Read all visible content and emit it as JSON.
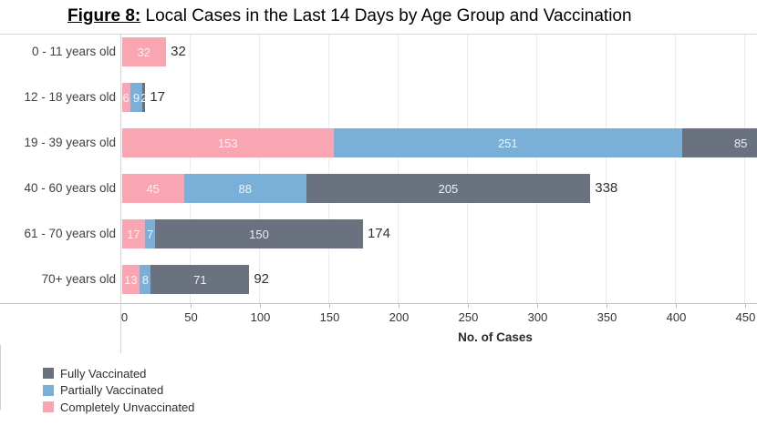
{
  "title": {
    "prefix": "Figure 8:",
    "rest": " Local Cases in the Last 14 Days by Age Group and Vaccination"
  },
  "chart_data": {
    "type": "bar",
    "orientation": "horizontal",
    "stacked": true,
    "title": "Figure 8: Local Cases in the Last 14 Days by Age Group and Vaccination",
    "xlabel": "No. of Cases",
    "ylabel": "",
    "xlim": [
      0,
      450
    ],
    "x_ticks": [
      0,
      50,
      100,
      150,
      200,
      250,
      300,
      350,
      400,
      450
    ],
    "grid": true,
    "legend_position": "bottom-left",
    "categories": [
      "0 - 11 years old",
      "12 - 18 years old",
      "19 - 39 years old",
      "40 - 60 years old",
      "61 - 70 years old",
      "70+ years old"
    ],
    "series": [
      {
        "name": "Completely Unvaccinated",
        "color": "#F9A6B2",
        "values": [
          32,
          6,
          153,
          45,
          17,
          13
        ]
      },
      {
        "name": "Partially Vaccinated",
        "color": "#7AAFD8",
        "values": [
          0,
          9,
          251,
          88,
          7,
          8
        ]
      },
      {
        "name": "Fully Vaccinated",
        "color": "#6A7280",
        "values": [
          0,
          2,
          85,
          205,
          150,
          71
        ]
      }
    ],
    "visible_totals": [
      "32",
      "17",
      null,
      "338",
      "174",
      "92"
    ],
    "note": "19 - 39 years old bar (total 489) is clipped at the right edge of the image"
  },
  "legend": {
    "items": [
      {
        "label": "Fully Vaccinated",
        "color": "#6A7280"
      },
      {
        "label": "Partially Vaccinated",
        "color": "#7AAFD8"
      },
      {
        "label": "Completely Unvaccinated",
        "color": "#F9A6B2"
      }
    ]
  },
  "colors": {
    "fully_vaccinated": "#6A7280",
    "partially_vaccinated": "#7AAFD8",
    "completely_unvaccinated": "#F9A6B2",
    "axis_line": "#c4c4c4",
    "gridline": "#ededed",
    "total_label": "#303030"
  }
}
